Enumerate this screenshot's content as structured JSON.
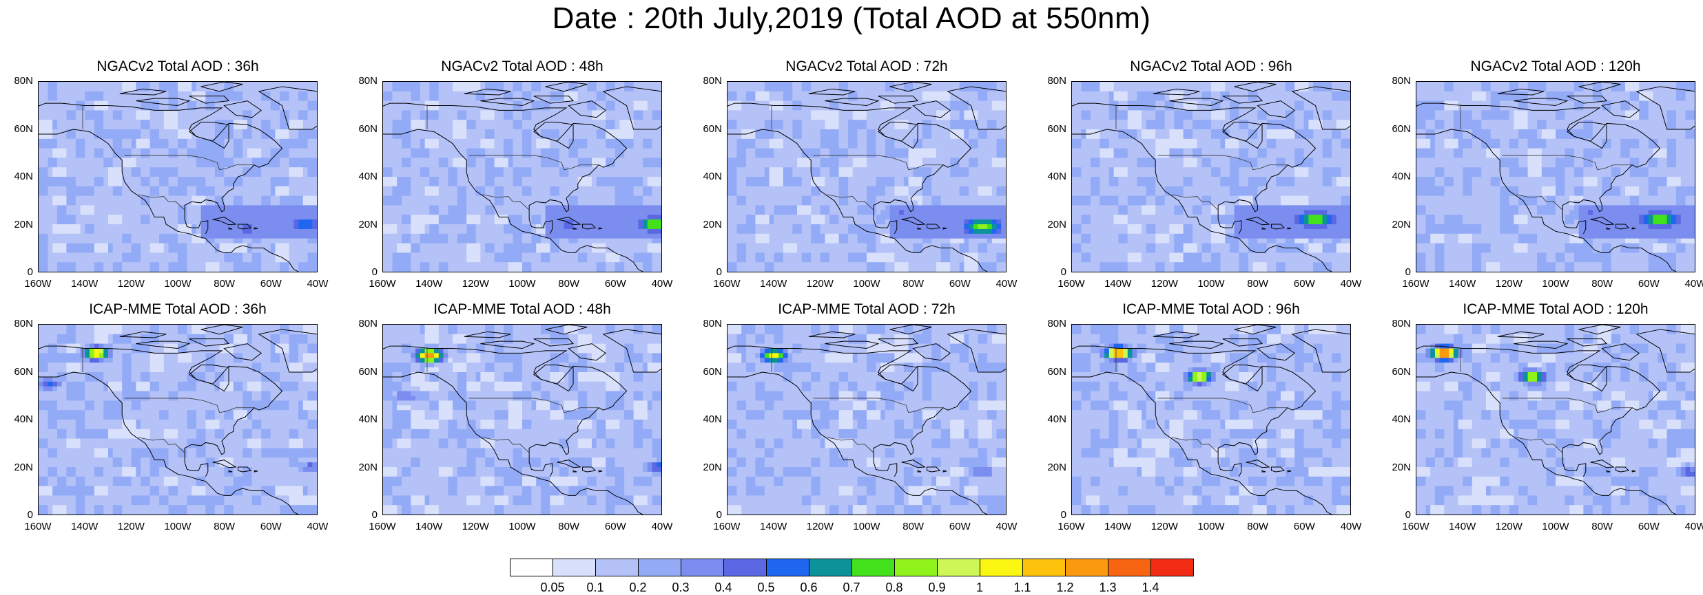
{
  "title": "Date : 20th July,2019 (Total AOD at 550nm)",
  "chart_data": {
    "type": "heatmap",
    "variable": "Total AOD at 550nm",
    "date": "20th July,2019",
    "latitude_ticks": [
      "80N",
      "60N",
      "40N",
      "20N",
      "0"
    ],
    "longitude_ticks": [
      "160W",
      "140W",
      "120W",
      "100W",
      "80W",
      "60W",
      "40W"
    ],
    "panels": [
      {
        "title": "NGACv2 Total AOD : 36h",
        "model": "NGACv2",
        "lead": "36h",
        "features": [
          {
            "lon": -70,
            "lat": 18,
            "aod": 0.45
          },
          {
            "lon": -45,
            "lat": 20,
            "aod": 0.6
          }
        ]
      },
      {
        "title": "NGACv2 Total AOD : 48h",
        "model": "NGACv2",
        "lead": "48h",
        "features": [
          {
            "lon": -80,
            "lat": 20,
            "aod": 0.45
          },
          {
            "lon": -42,
            "lat": 20,
            "aod": 0.85
          }
        ]
      },
      {
        "title": "NGACv2 Total AOD : 72h",
        "model": "NGACv2",
        "lead": "72h",
        "features": [
          {
            "lon": -50,
            "lat": 19,
            "aod": 0.85
          },
          {
            "lon": -85,
            "lat": 25,
            "aod": 0.4
          }
        ]
      },
      {
        "title": "NGACv2 Total AOD : 96h",
        "model": "NGACv2",
        "lead": "96h",
        "features": [
          {
            "lon": -55,
            "lat": 22,
            "aod": 0.85
          },
          {
            "lon": -85,
            "lat": 22,
            "aod": 0.4
          }
        ]
      },
      {
        "title": "NGACv2 Total AOD : 120h",
        "model": "NGACv2",
        "lead": "120h",
        "features": [
          {
            "lon": -55,
            "lat": 22,
            "aod": 0.85
          },
          {
            "lon": -85,
            "lat": 25,
            "aod": 0.4
          }
        ]
      },
      {
        "title": "ICAP-MME Total AOD : 36h",
        "model": "ICAP-MME",
        "lead": "36h",
        "features": [
          {
            "lon": -135,
            "lat": 68,
            "aod": 1.1
          },
          {
            "lon": -155,
            "lat": 55,
            "aod": 0.45
          },
          {
            "lon": -42,
            "lat": 20,
            "aod": 0.4
          }
        ]
      },
      {
        "title": "ICAP-MME Total AOD : 48h",
        "model": "ICAP-MME",
        "lead": "48h",
        "features": [
          {
            "lon": -140,
            "lat": 67,
            "aod": 1.3
          },
          {
            "lon": -150,
            "lat": 50,
            "aod": 0.4
          },
          {
            "lon": -42,
            "lat": 20,
            "aod": 0.5
          }
        ]
      },
      {
        "title": "ICAP-MME Total AOD : 72h",
        "model": "ICAP-MME",
        "lead": "72h",
        "features": [
          {
            "lon": -140,
            "lat": 67,
            "aod": 1.0
          },
          {
            "lon": -50,
            "lat": 18,
            "aod": 0.4
          }
        ]
      },
      {
        "title": "ICAP-MME Total AOD : 96h",
        "model": "ICAP-MME",
        "lead": "96h",
        "features": [
          {
            "lon": -140,
            "lat": 68,
            "aod": 1.3
          },
          {
            "lon": -105,
            "lat": 58,
            "aod": 1.0
          }
        ]
      },
      {
        "title": "ICAP-MME Total AOD : 120h",
        "model": "ICAP-MME",
        "lead": "120h",
        "features": [
          {
            "lon": -148,
            "lat": 68,
            "aod": 1.4
          },
          {
            "lon": -110,
            "lat": 58,
            "aod": 0.9
          },
          {
            "lon": -42,
            "lat": 18,
            "aod": 0.45
          }
        ]
      }
    ]
  },
  "colorbar": {
    "labels": [
      "0.05",
      "0.1",
      "0.2",
      "0.3",
      "0.4",
      "0.5",
      "0.6",
      "0.7",
      "0.8",
      "0.9",
      "1",
      "1.1",
      "1.2",
      "1.3",
      "1.4"
    ],
    "colors": [
      "#ffffff",
      "#d9e0fb",
      "#b4c2f7",
      "#93abf7",
      "#7b8ef0",
      "#5a68e4",
      "#1f66f0",
      "#0b9399",
      "#43e11c",
      "#8ff21b",
      "#cdf757",
      "#fbf712",
      "#fdc20b",
      "#fb9a0e",
      "#f76412",
      "#f22b14"
    ]
  }
}
